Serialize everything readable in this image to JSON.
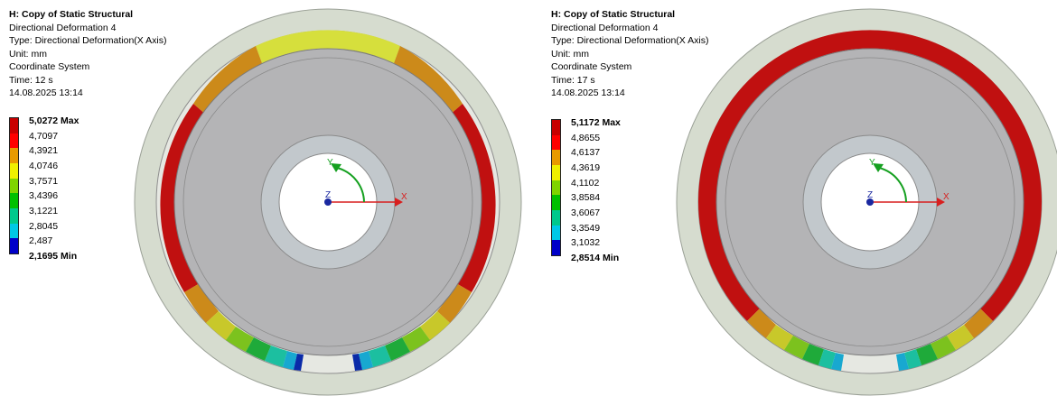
{
  "panels": [
    {
      "title": "H: Copy of Static Structural",
      "result_name": "Directional Deformation 4",
      "type": "Type: Directional Deformation(X Axis)",
      "unit": "Unit: mm",
      "coordinate_system": "Coordinate System",
      "time": "Time: 12 s",
      "date": "14.08.2025 13:14",
      "legend": {
        "max_label": "5,0272 Max",
        "levels": [
          "4,7097",
          "4,3921",
          "4,0746",
          "3,7571",
          "3,4396",
          "3,1221",
          "2,8045",
          "2,487"
        ],
        "min_label": "2,1695 Min"
      },
      "axes": {
        "x": "X",
        "y": "Y",
        "z": "Z"
      }
    },
    {
      "title": "H: Copy of Static Structural",
      "result_name": "Directional Deformation 4",
      "type": "Type: Directional Deformation(X Axis)",
      "unit": "Unit: mm",
      "coordinate_system": "Coordinate System",
      "time": "Time: 17 s",
      "date": "14.08.2025 13:14",
      "legend": {
        "max_label": "5,1172 Max",
        "levels": [
          "4,8655",
          "4,6137",
          "4,3619",
          "4,1102",
          "3,8584",
          "3,6067",
          "3,3549",
          "3,1032"
        ],
        "min_label": "2,8514 Min"
      },
      "axes": {
        "x": "X",
        "y": "Y",
        "z": "Z"
      }
    }
  ],
  "colors": {
    "scale": [
      "#c80000",
      "#ff0000",
      "#e89a00",
      "#f0f000",
      "#7fd400",
      "#00c000",
      "#00c88c",
      "#00c8e6",
      "#0088e0",
      "#0000c8"
    ],
    "outer_ring": "#d6dccf",
    "disk": "#b4b4b6",
    "hub": "#c2c8cc",
    "bore": "#ffffff",
    "axis_x": "#d81f1f",
    "axis_y": "#15a020",
    "axis_z": "#1a28a0"
  }
}
